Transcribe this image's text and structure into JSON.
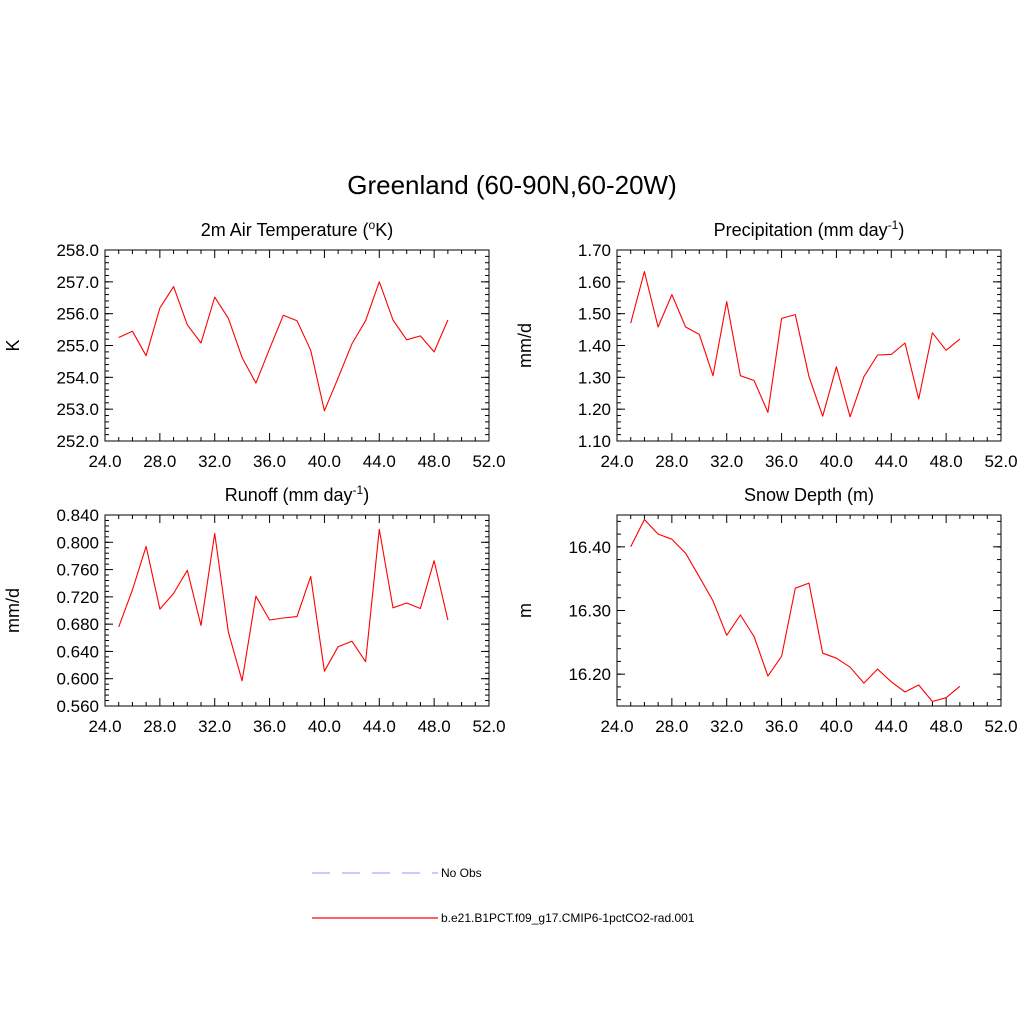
{
  "figure_title": "Greenland (60-90N,60-20W)",
  "legend": [
    {
      "label": "No Obs",
      "color": "#aaaaff",
      "dash": true
    },
    {
      "label": "b.e21.B1PCT.f09_g17.CMIP6-1pctCO2-rad.001",
      "color": "#ff0000",
      "dash": false
    }
  ],
  "chart_data": [
    {
      "type": "line",
      "title": "2m Air Temperature (",
      "title_sup": "o",
      "title_after": "K)",
      "ylabel": "K",
      "xlim": [
        24,
        52
      ],
      "ylim": [
        252,
        258
      ],
      "xticks": [
        "24.0",
        "28.0",
        "32.0",
        "36.0",
        "40.0",
        "44.0",
        "48.0",
        "52.0"
      ],
      "yticks": [
        "252.0",
        "253.0",
        "254.0",
        "255.0",
        "256.0",
        "257.0",
        "258.0"
      ],
      "x": [
        25,
        26,
        27,
        28,
        29,
        30,
        31,
        32,
        33,
        34,
        35,
        36,
        37,
        38,
        39,
        40,
        41,
        42,
        43,
        44,
        45,
        46,
        47,
        48,
        49
      ],
      "series": [
        {
          "color": "#ff0000",
          "values": [
            255.25,
            255.45,
            254.68,
            256.18,
            256.85,
            255.65,
            255.08,
            256.52,
            255.85,
            254.62,
            253.82,
            254.9,
            255.95,
            255.78,
            254.85,
            252.95,
            253.98,
            255.05,
            255.78,
            257.0,
            255.8,
            255.18,
            255.3,
            254.8,
            255.8
          ]
        }
      ]
    },
    {
      "type": "line",
      "title": "Precipitation (mm day",
      "title_sup": "-1",
      "title_after": ")",
      "ylabel": "mm/d",
      "xlim": [
        24,
        52
      ],
      "ylim": [
        1.1,
        1.7
      ],
      "xticks": [
        "24.0",
        "28.0",
        "32.0",
        "36.0",
        "40.0",
        "44.0",
        "48.0",
        "52.0"
      ],
      "yticks": [
        "1.10",
        "1.20",
        "1.30",
        "1.40",
        "1.50",
        "1.60",
        "1.70"
      ],
      "x": [
        25,
        26,
        27,
        28,
        29,
        30,
        31,
        32,
        33,
        34,
        35,
        36,
        37,
        38,
        39,
        40,
        41,
        42,
        43,
        44,
        45,
        46,
        47,
        48,
        49
      ],
      "series": [
        {
          "color": "#ff0000",
          "values": [
            1.47,
            1.632,
            1.458,
            1.56,
            1.458,
            1.435,
            1.305,
            1.538,
            1.305,
            1.29,
            1.19,
            1.485,
            1.497,
            1.302,
            1.178,
            1.333,
            1.176,
            1.302,
            1.37,
            1.372,
            1.408,
            1.232,
            1.44,
            1.385,
            1.42
          ]
        }
      ]
    },
    {
      "type": "line",
      "title": "Runoff (mm day",
      "title_sup": "-1",
      "title_after": ")",
      "ylabel": "mm/d",
      "xlim": [
        24,
        52
      ],
      "ylim": [
        0.56,
        0.84
      ],
      "xticks": [
        "24.0",
        "28.0",
        "32.0",
        "36.0",
        "40.0",
        "44.0",
        "48.0",
        "52.0"
      ],
      "yticks": [
        "0.560",
        "0.600",
        "0.640",
        "0.680",
        "0.720",
        "0.760",
        "0.800",
        "0.840"
      ],
      "x": [
        25,
        26,
        27,
        28,
        29,
        30,
        31,
        32,
        33,
        34,
        35,
        36,
        37,
        38,
        39,
        40,
        41,
        42,
        43,
        44,
        45,
        46,
        47,
        48,
        49
      ],
      "series": [
        {
          "color": "#ff0000",
          "values": [
            0.676,
            0.73,
            0.794,
            0.702,
            0.725,
            0.759,
            0.678,
            0.813,
            0.668,
            0.597,
            0.721,
            0.686,
            0.689,
            0.691,
            0.75,
            0.611,
            0.647,
            0.655,
            0.625,
            0.819,
            0.704,
            0.711,
            0.703,
            0.773,
            0.686
          ]
        }
      ]
    },
    {
      "type": "line",
      "title": "Snow Depth (m)",
      "title_sup": "",
      "title_after": "",
      "ylabel": "m",
      "xlim": [
        24,
        52
      ],
      "ylim": [
        16.15,
        16.45
      ],
      "xticks": [
        "24.0",
        "28.0",
        "32.0",
        "36.0",
        "40.0",
        "44.0",
        "48.0",
        "52.0"
      ],
      "yticks": [
        "16.20",
        "16.30",
        "16.40"
      ],
      "ytick_values": [
        16.2,
        16.3,
        16.4
      ],
      "x": [
        25,
        26,
        27,
        28,
        29,
        30,
        31,
        32,
        33,
        34,
        35,
        36,
        37,
        38,
        39,
        40,
        41,
        42,
        43,
        44,
        45,
        46,
        47,
        48,
        49
      ],
      "series": [
        {
          "color": "#ff0000",
          "values": [
            16.4,
            16.443,
            16.42,
            16.412,
            16.39,
            16.353,
            16.315,
            16.261,
            16.293,
            16.259,
            16.197,
            16.228,
            16.335,
            16.343,
            16.233,
            16.225,
            16.211,
            16.186,
            16.208,
            16.188,
            16.172,
            16.183,
            16.157,
            16.163,
            16.181
          ]
        }
      ]
    }
  ]
}
